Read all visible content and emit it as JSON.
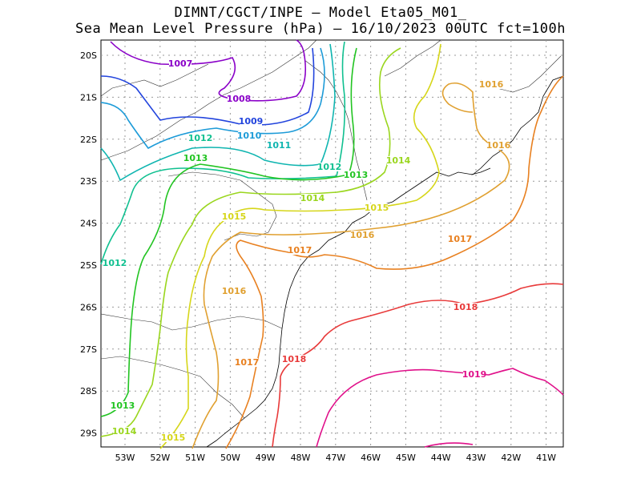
{
  "title_line1": "DIMNT/CGCT/INPE –  Model Eta05_M01_",
  "title_line2": "Sea Mean Level Pressure (hPa) – 16/10/2023 00UTC fct=100h",
  "x_ticks": [
    "53W",
    "52W",
    "51W",
    "50W",
    "49W",
    "48W",
    "47W",
    "46W",
    "45W",
    "44W",
    "43W",
    "42W",
    "41W"
  ],
  "y_ticks": [
    "20S",
    "21S",
    "22S",
    "23S",
    "24S",
    "25S",
    "26S",
    "27S",
    "28S",
    "29S"
  ],
  "contour_labels": [
    {
      "text": "1007",
      "color": "#8a00c8"
    },
    {
      "text": "1008",
      "color": "#8a00c8"
    },
    {
      "text": "1009",
      "color": "#2244dd"
    },
    {
      "text": "1010",
      "color": "#1d9bd8"
    },
    {
      "text": "1011",
      "color": "#0fb5b0"
    },
    {
      "text": "1012",
      "color": "#10c090"
    },
    {
      "text": "1012",
      "color": "#10c090"
    },
    {
      "text": "1012",
      "color": "#10c090"
    },
    {
      "text": "1013",
      "color": "#22c422"
    },
    {
      "text": "1013",
      "color": "#22c422"
    },
    {
      "text": "1013",
      "color": "#22c422"
    },
    {
      "text": "1014",
      "color": "#9ad61e"
    },
    {
      "text": "1014",
      "color": "#9ad61e"
    },
    {
      "text": "1014",
      "color": "#9ad61e"
    },
    {
      "text": "1015",
      "color": "#d6d61a"
    },
    {
      "text": "1015",
      "color": "#d6d61a"
    },
    {
      "text": "1015",
      "color": "#d6d61a"
    },
    {
      "text": "1016",
      "color": "#e0a030"
    },
    {
      "text": "1016",
      "color": "#e0a030"
    },
    {
      "text": "1016",
      "color": "#e0a030"
    },
    {
      "text": "1016",
      "color": "#e0a030"
    },
    {
      "text": "1017",
      "color": "#e88020"
    },
    {
      "text": "1017",
      "color": "#e88020"
    },
    {
      "text": "1017",
      "color": "#e88020"
    },
    {
      "text": "1018",
      "color": "#e83a3a"
    },
    {
      "text": "1018",
      "color": "#e83a3a"
    },
    {
      "text": "1019",
      "color": "#e0108a"
    }
  ]
}
